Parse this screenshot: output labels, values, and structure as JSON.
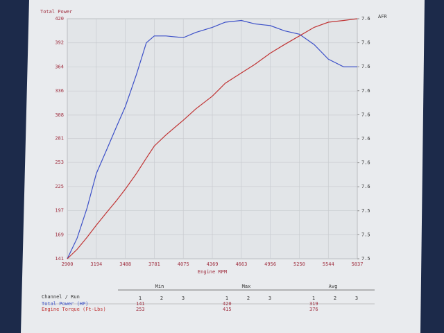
{
  "chart_data": {
    "type": "line",
    "y_label": "Total Power",
    "y2_label": "AFR",
    "x_label": "Engine RPM",
    "xlim": [
      2900,
      5837
    ],
    "xticks": [
      2900,
      3194,
      3488,
      3781,
      4075,
      4369,
      4663,
      4956,
      5250,
      5544,
      5837
    ],
    "ylim": [
      141,
      420
    ],
    "yticks": [
      141,
      169,
      197,
      225,
      253,
      281,
      308,
      336,
      364,
      392,
      420
    ],
    "y2lim": [
      7.52,
      7.62
    ],
    "y2ticks": [
      {
        "value": 7.52,
        "label": "7.5"
      },
      {
        "value": 7.53,
        "label": "7.5"
      },
      {
        "value": 7.54,
        "label": "7.5"
      },
      {
        "value": 7.55,
        "label": "7.6"
      },
      {
        "value": 7.56,
        "label": "7.6"
      },
      {
        "value": 7.57,
        "label": "7.6"
      },
      {
        "value": 7.58,
        "label": "7.6"
      },
      {
        "value": 7.59,
        "label": "7.6"
      },
      {
        "value": 7.6,
        "label": "7.6"
      },
      {
        "value": 7.61,
        "label": "7.6"
      },
      {
        "value": 7.62,
        "label": "7.6"
      }
    ],
    "grid": true,
    "x": [
      2900,
      3000,
      3100,
      3194,
      3300,
      3400,
      3488,
      3600,
      3700,
      3781,
      3900,
      4075,
      4200,
      4369,
      4500,
      4663,
      4800,
      4956,
      5100,
      5250,
      5400,
      5544,
      5700,
      5837
    ],
    "series": [
      {
        "name": "Total Power (HP)",
        "color": "#3c50c8",
        "values": [
          141,
          165,
          200,
          240,
          268,
          295,
          318,
          355,
          392,
          400,
          400,
          398,
          404,
          410,
          416,
          418,
          414,
          412,
          406,
          402,
          390,
          373,
          364,
          364
        ]
      },
      {
        "name": "Engine Torque (Ft-Lbs)",
        "color": "#c03434",
        "values": [
          141,
          152,
          166,
          180,
          195,
          209,
          222,
          240,
          258,
          272,
          285,
          302,
          315,
          330,
          345,
          357,
          367,
          380,
          390,
          400,
          410,
          416,
          418,
          420
        ]
      }
    ]
  },
  "table": {
    "channel_header": "Channel / Run",
    "groups": [
      "Min",
      "Max",
      "Avg"
    ],
    "runs": [
      1,
      2,
      3
    ],
    "rows": [
      {
        "name": "Total Power (HP)",
        "min": 141,
        "max": 420,
        "avg": 319
      },
      {
        "name": "Engine Torque (Ft-Lbs)",
        "min": 253,
        "max": 415,
        "avg": 376
      }
    ]
  }
}
